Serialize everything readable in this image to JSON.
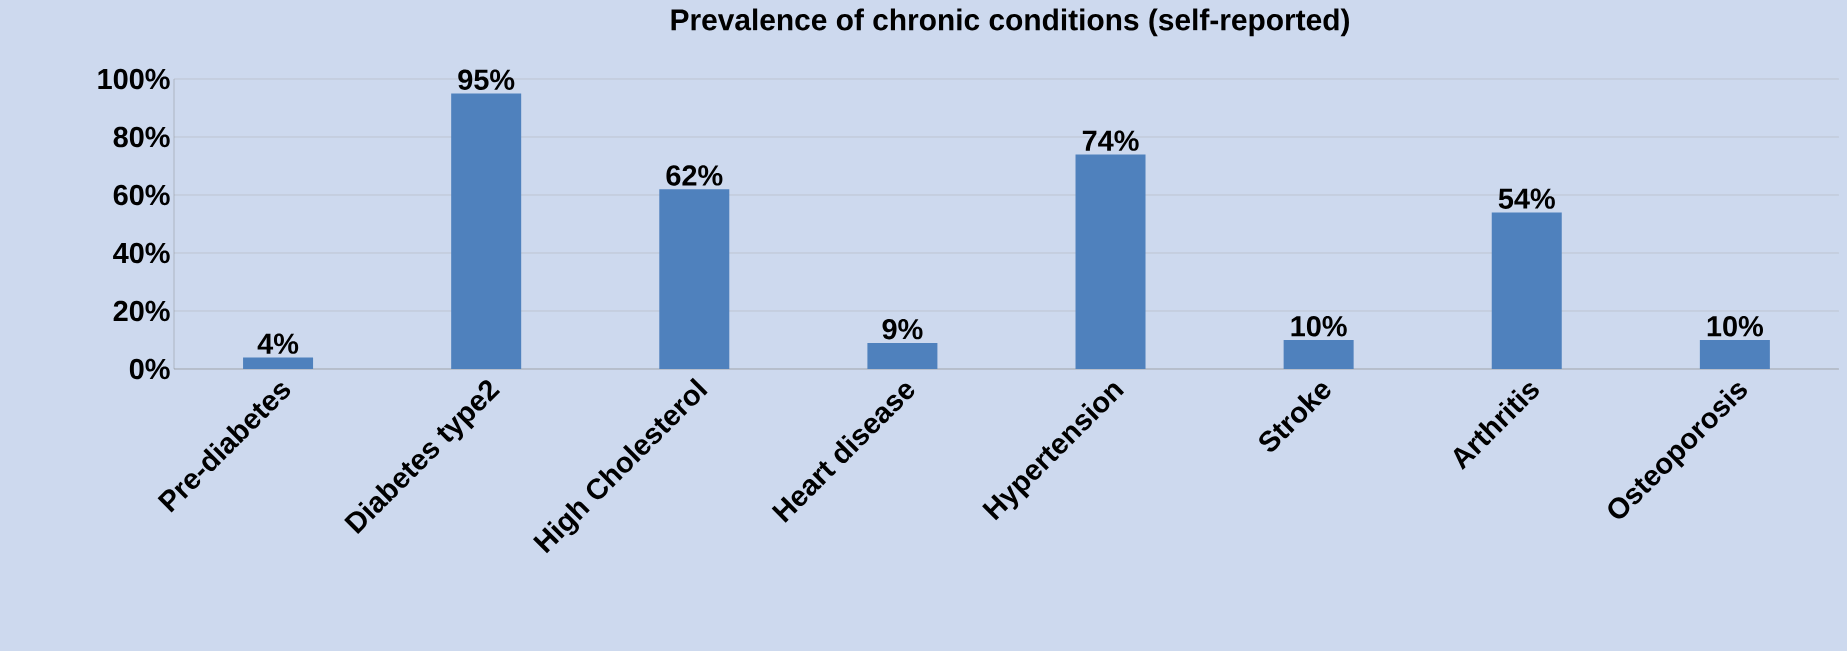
{
  "chart_data": {
    "type": "bar",
    "title": "Prevalence of chronic conditions (self-reported)",
    "categories": [
      "Pre-diabetes",
      "Diabetes type2",
      "High Cholesterol",
      "Heart disease",
      "Hypertension",
      "Stroke",
      "Arthritis",
      "Osteoporosis"
    ],
    "values": [
      4,
      95,
      62,
      9,
      74,
      10,
      54,
      10
    ],
    "value_labels": [
      "4%",
      "95%",
      "62%",
      "9%",
      "74%",
      "10%",
      "54%",
      "10%"
    ],
    "color": "#4f81bd",
    "ylim": [
      0,
      100
    ],
    "yticks": [
      {
        "value": 0,
        "label": "0%"
      },
      {
        "value": 20,
        "label": "20%"
      },
      {
        "value": 40,
        "label": "40%"
      },
      {
        "value": 60,
        "label": "60%"
      },
      {
        "value": 80,
        "label": "80%"
      },
      {
        "value": 100,
        "label": "100%"
      }
    ],
    "grid": "y"
  }
}
